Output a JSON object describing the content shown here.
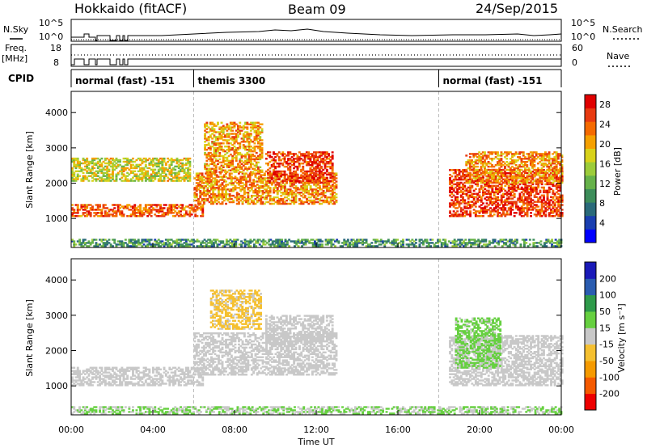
{
  "header": {
    "station": "Hokkaido (fitACF)",
    "beam": "Beam 09",
    "date": "24/Sep/2015"
  },
  "info_panels": {
    "nsky": {
      "label": "N.Sky",
      "ticks": [
        "10^5",
        "10^0"
      ],
      "right_ticks": [
        "10^5",
        "10^0"
      ],
      "right_label": "N.Search"
    },
    "freq": {
      "label_top": "Freq.",
      "label_bottom": "[MHz]",
      "ticks": [
        "18",
        "8"
      ],
      "right_ticks": [
        "60",
        "0"
      ],
      "right_label": "Nave"
    },
    "cpid": {
      "label": "CPID",
      "segments": [
        {
          "name": "normal (fast) -151",
          "start_hour": 0,
          "end_hour": 6
        },
        {
          "name": "themis 3300",
          "start_hour": 6,
          "end_hour": 18
        },
        {
          "name": "normal (fast) -151",
          "start_hour": 18,
          "end_hour": 24
        }
      ]
    }
  },
  "chart_data": [
    {
      "type": "heatmap",
      "title": "",
      "xlabel": "Time UT",
      "ylabel": "Slant Range [km]",
      "x_ticks": [
        "00:00",
        "04:00",
        "08:00",
        "12:00",
        "16:00",
        "20:00",
        "00:00"
      ],
      "xlim_hours": [
        0,
        24
      ],
      "y_ticks": [
        1000,
        2000,
        3000,
        4000
      ],
      "ylim": [
        180,
        4600
      ],
      "colorbar": {
        "label": "Power [dB]",
        "ticks": [
          4,
          8,
          12,
          16,
          20,
          24,
          28
        ],
        "range": [
          0,
          30
        ],
        "colors": [
          "#0000ff",
          "#1a3fb0",
          "#2a6a7a",
          "#3d8d5a",
          "#66b24a",
          "#9ccc3a",
          "#d8d21a",
          "#f5a000",
          "#f56a00",
          "#e83a10",
          "#e00000"
        ]
      },
      "echo_bands": [
        {
          "start_hour": 0.0,
          "end_hour": 6.4,
          "range_km": [
            1050,
            1400
          ],
          "power_db": 24
        },
        {
          "start_hour": 0.0,
          "end_hour": 5.8,
          "range_km": [
            2050,
            2700
          ],
          "power_db": 17
        },
        {
          "start_hour": 6.0,
          "end_hour": 13.0,
          "range_km": [
            1400,
            2300
          ],
          "power_db": 22
        },
        {
          "start_hour": 6.5,
          "end_hour": 9.3,
          "range_km": [
            2300,
            3700
          ],
          "power_db": 21
        },
        {
          "start_hour": 9.5,
          "end_hour": 12.8,
          "range_km": [
            2000,
            2900
          ],
          "power_db": 26
        },
        {
          "start_hour": 18.5,
          "end_hour": 24.0,
          "range_km": [
            1050,
            2400
          ],
          "power_db": 26
        },
        {
          "start_hour": 19.3,
          "end_hour": 24.0,
          "range_km": [
            2000,
            2900
          ],
          "power_db": 22
        },
        {
          "start_hour": 0.0,
          "end_hour": 24.0,
          "range_km": [
            200,
            400
          ],
          "power_db": 10
        }
      ]
    },
    {
      "type": "heatmap",
      "title": "",
      "xlabel": "Time UT",
      "ylabel": "Slant Range [km]",
      "x_ticks": [
        "00:00",
        "04:00",
        "08:00",
        "12:00",
        "16:00",
        "20:00",
        "00:00"
      ],
      "xlim_hours": [
        0,
        24
      ],
      "y_ticks": [
        1000,
        2000,
        3000,
        4000
      ],
      "ylim": [
        180,
        4600
      ],
      "colorbar": {
        "label": "Velocity [m s⁻¹]",
        "ticks": [
          -200,
          -100,
          -50,
          -15,
          15,
          50,
          100,
          200
        ],
        "range": [
          -250,
          250
        ],
        "colors": [
          "#ee0000",
          "#f55a00",
          "#f59a00",
          "#f5c030",
          "#c8c8c8",
          "#66d040",
          "#2e9a4a",
          "#2a5cb0",
          "#1a1ab8"
        ]
      },
      "echo_bands": [
        {
          "start_hour": 0.0,
          "end_hour": 6.4,
          "range_km": [
            1000,
            1500
          ],
          "velocity": 0
        },
        {
          "start_hour": 6.0,
          "end_hour": 13.0,
          "range_km": [
            1300,
            2500
          ],
          "velocity": 0
        },
        {
          "start_hour": 6.8,
          "end_hour": 9.3,
          "range_km": [
            2600,
            3700
          ],
          "velocity": -40
        },
        {
          "start_hour": 9.5,
          "end_hour": 12.8,
          "range_km": [
            2200,
            3000
          ],
          "velocity": 0
        },
        {
          "start_hour": 18.5,
          "end_hour": 24.0,
          "range_km": [
            1000,
            2400
          ],
          "velocity": 0
        },
        {
          "start_hour": 18.8,
          "end_hour": 21.0,
          "range_km": [
            1500,
            2900
          ],
          "velocity": 40
        },
        {
          "start_hour": 0.0,
          "end_hour": 24.0,
          "range_km": [
            200,
            400
          ],
          "velocity": 30
        }
      ]
    }
  ]
}
